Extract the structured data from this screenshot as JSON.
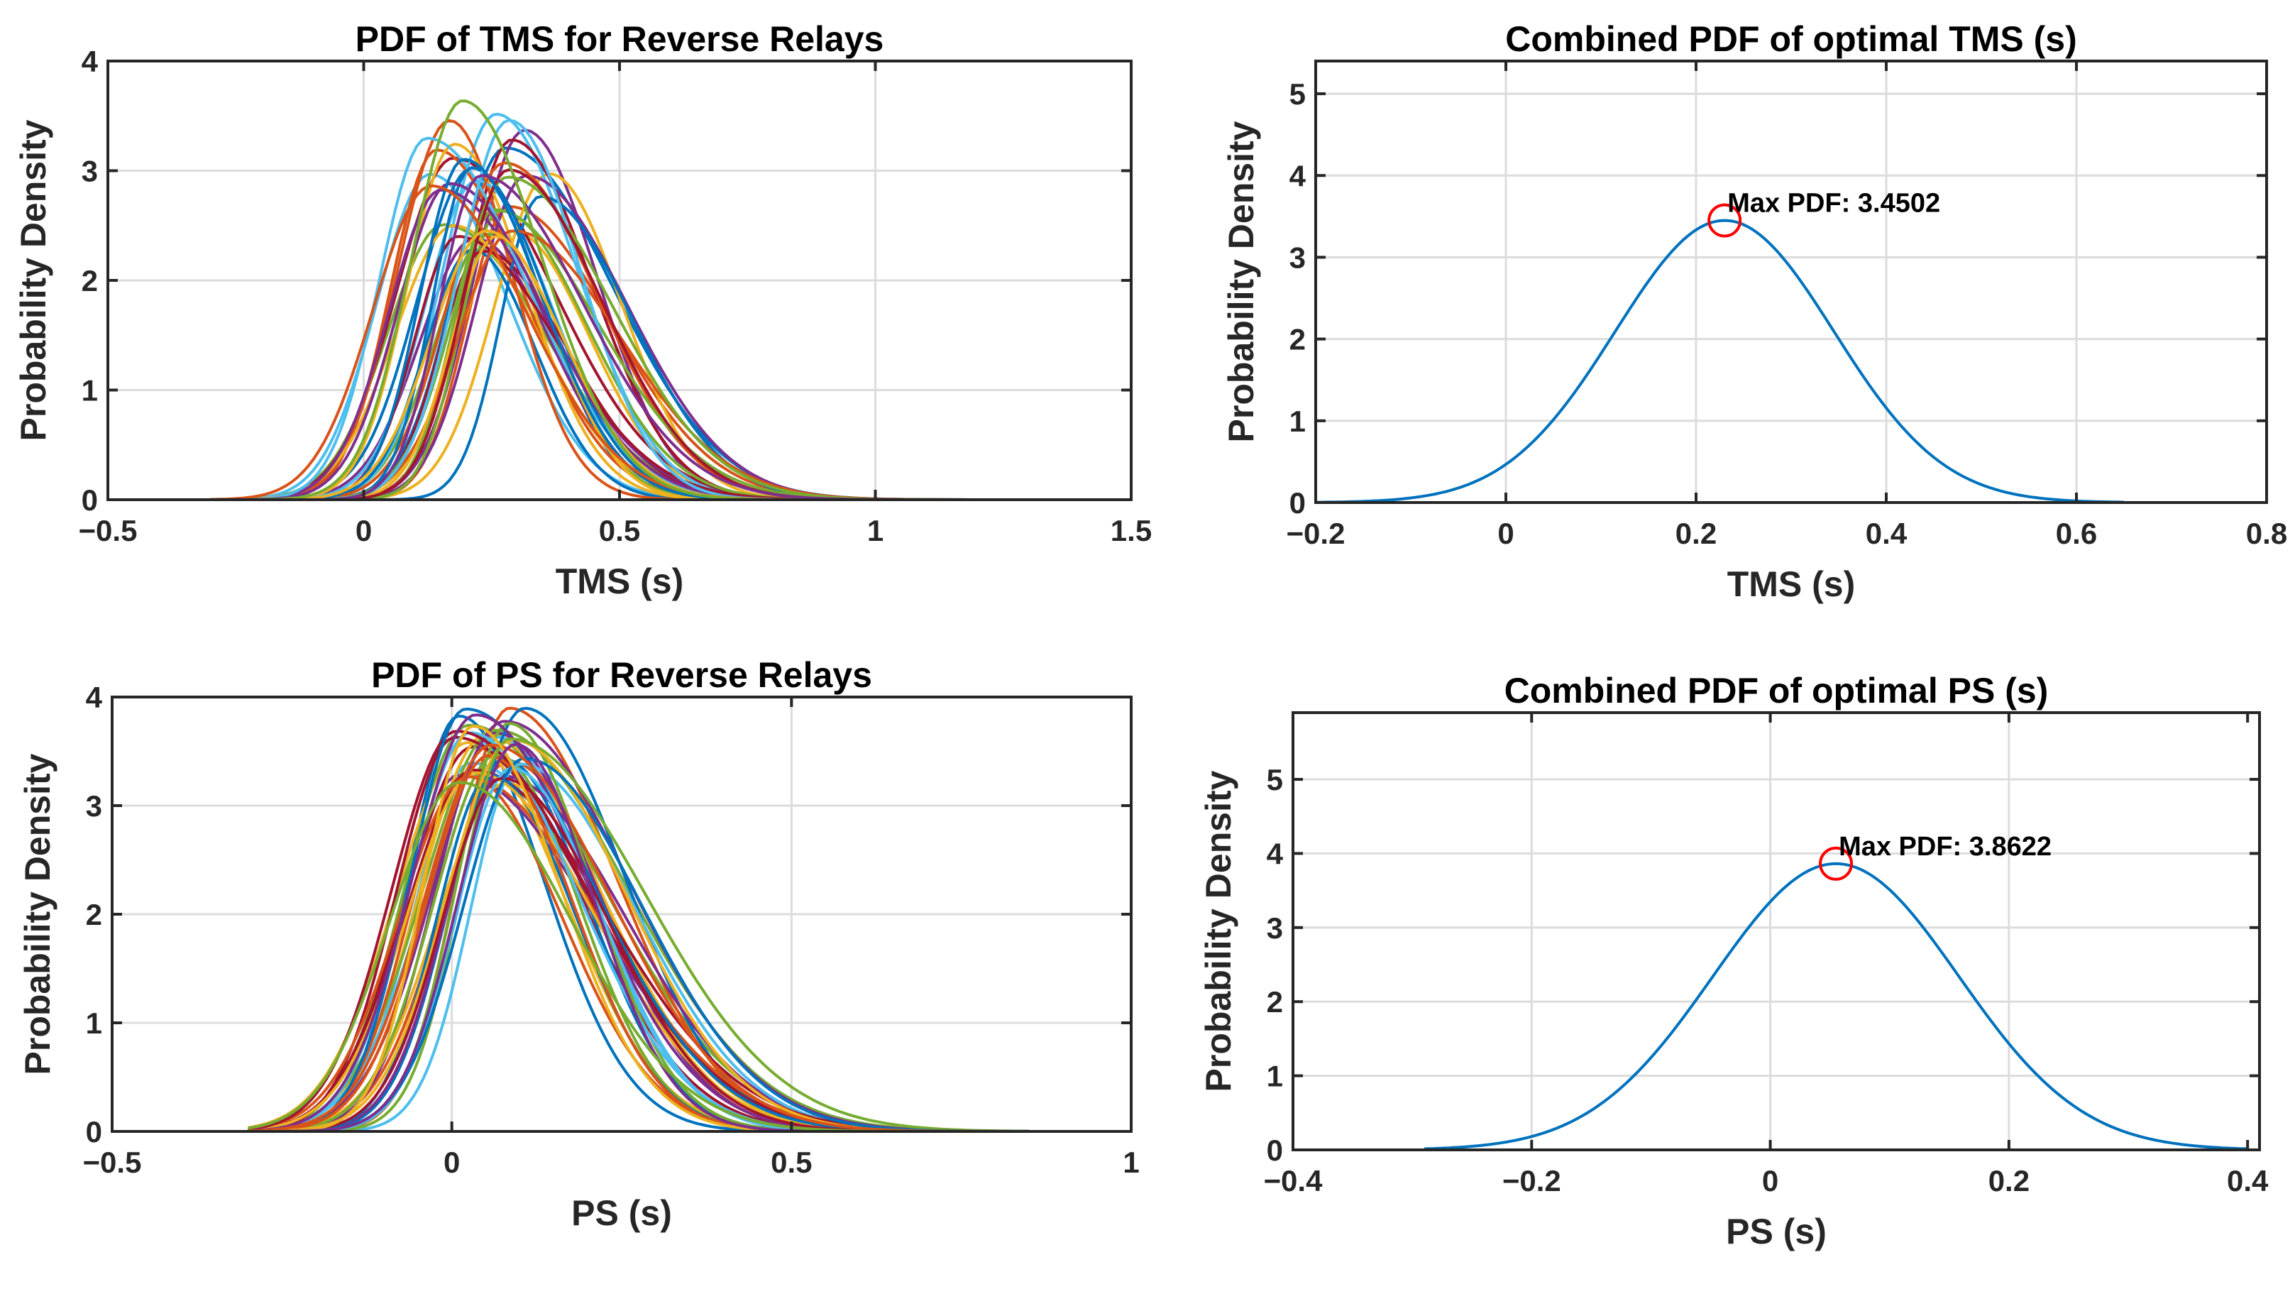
{
  "chart_data": [
    {
      "id": "tms_reverse",
      "type": "line",
      "title": "PDF of TMS for Reverse Relays",
      "xlabel": "TMS (s)",
      "ylabel": "Probability Density",
      "xlim": [
        -0.5,
        1.5
      ],
      "ylim": [
        0,
        4
      ],
      "xticks": [
        -0.5,
        0,
        0.5,
        1,
        1.5
      ],
      "xtick_labels": [
        "−0.5",
        "0",
        "0.5",
        "1",
        "1.5"
      ],
      "yticks": [
        0,
        1,
        2,
        3,
        4
      ],
      "ytick_labels": [
        "0",
        "1",
        "2",
        "3",
        "4"
      ],
      "grid": true,
      "family": {
        "count": 40,
        "x_start": -0.3,
        "x_end": 1.4,
        "mode_range": [
          0.1,
          0.37
        ],
        "peak_range": [
          2.2,
          3.65
        ],
        "colors": [
          "#0072BD",
          "#D95319",
          "#EDB120",
          "#7E2F8E",
          "#77AC30",
          "#4DBEEE",
          "#A2142F"
        ]
      }
    },
    {
      "id": "tms_combined",
      "type": "line",
      "title": "Combined PDF of optimal TMS (s)",
      "xlabel": "TMS (s)",
      "ylabel": "Probability Density",
      "xlim": [
        -0.2,
        0.8
      ],
      "ylim": [
        0,
        5.4
      ],
      "xticks": [
        -0.2,
        0,
        0.2,
        0.4,
        0.6,
        0.8
      ],
      "xtick_labels": [
        "−0.2",
        "0",
        "0.2",
        "0.4",
        "0.6",
        "0.8"
      ],
      "yticks": [
        0,
        1,
        2,
        3,
        4,
        5
      ],
      "ytick_labels": [
        "0",
        "1",
        "2",
        "3",
        "4",
        "5"
      ],
      "grid": true,
      "series": [
        {
          "name": "Combined PDF",
          "color": "#0072BD",
          "x_range": [
            -0.2,
            0.65
          ],
          "mean": 0.23,
          "peak": 3.4502
        }
      ],
      "marker": {
        "x": 0.23,
        "y": 3.4502,
        "color": "#FF0000"
      },
      "annotation": "Max PDF: 3.4502"
    },
    {
      "id": "ps_reverse",
      "type": "line",
      "title": "PDF of PS for Reverse Relays",
      "xlabel": "PS (s)",
      "ylabel": "Probability Density",
      "xlim": [
        -0.5,
        1
      ],
      "ylim": [
        0,
        4
      ],
      "xticks": [
        -0.5,
        0,
        0.5,
        1
      ],
      "xtick_labels": [
        "−0.5",
        "0",
        "0.5",
        "1"
      ],
      "yticks": [
        0,
        1,
        2,
        3,
        4
      ],
      "ytick_labels": [
        "0",
        "1",
        "2",
        "3",
        "4"
      ],
      "grid": true,
      "family": {
        "count": 40,
        "x_start": -0.3,
        "x_end": 0.85,
        "mode_range": [
          0.0,
          0.11
        ],
        "peak_range": [
          3.2,
          3.92
        ],
        "colors": [
          "#0072BD",
          "#D95319",
          "#EDB120",
          "#7E2F8E",
          "#77AC30",
          "#4DBEEE",
          "#A2142F"
        ]
      }
    },
    {
      "id": "ps_combined",
      "type": "line",
      "title": "Combined PDF of optimal PS (s)",
      "xlabel": "PS (s)",
      "ylabel": "Probability Density",
      "xlim": [
        -0.4,
        0.41
      ],
      "ylim": [
        0,
        5.9
      ],
      "xticks": [
        -0.4,
        -0.2,
        0,
        0.2,
        0.4
      ],
      "xtick_labels": [
        "−0.4",
        "−0.2",
        "0",
        "0.2",
        "0.4"
      ],
      "yticks": [
        0,
        1,
        2,
        3,
        4,
        5
      ],
      "ytick_labels": [
        "0",
        "1",
        "2",
        "3",
        "4",
        "5"
      ],
      "grid": true,
      "series": [
        {
          "name": "Combined PDF",
          "color": "#0072BD",
          "x_range": [
            -0.29,
            0.4
          ],
          "mean": 0.055,
          "peak": 3.8622
        }
      ],
      "marker": {
        "x": 0.055,
        "y": 3.8622,
        "color": "#FF0000"
      },
      "annotation": "Max PDF: 3.8622"
    }
  ]
}
